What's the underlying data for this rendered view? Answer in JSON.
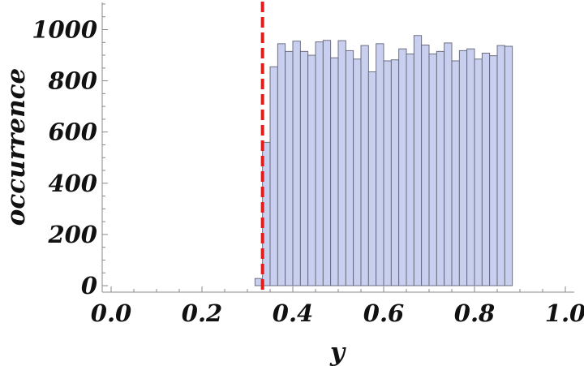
{
  "chart_data": {
    "type": "bar",
    "subtype": "histogram",
    "xlabel": "y",
    "ylabel": "occurrence",
    "xlim": [
      0.0,
      1.0
    ],
    "ylim": [
      0,
      1100
    ],
    "xticks": [
      "0.0",
      "0.2",
      "0.4",
      "0.6",
      "0.8",
      "1.0"
    ],
    "yticks": [
      "0",
      "200",
      "400",
      "600",
      "800",
      "1000"
    ],
    "bin_width": 0.016667,
    "bin_edges_start": 0.316667,
    "values": [
      28,
      560,
      855,
      945,
      915,
      955,
      915,
      900,
      952,
      958,
      890,
      957,
      918,
      885,
      938,
      835,
      945,
      878,
      882,
      925,
      905,
      977,
      940,
      905,
      915,
      948,
      878,
      918,
      925,
      885,
      908,
      898,
      938,
      935
    ],
    "reference_line": {
      "x": 0.3333,
      "color": "#e21b1b",
      "style": "dashed"
    },
    "bar_color": "#c9cfef",
    "grid": false
  }
}
